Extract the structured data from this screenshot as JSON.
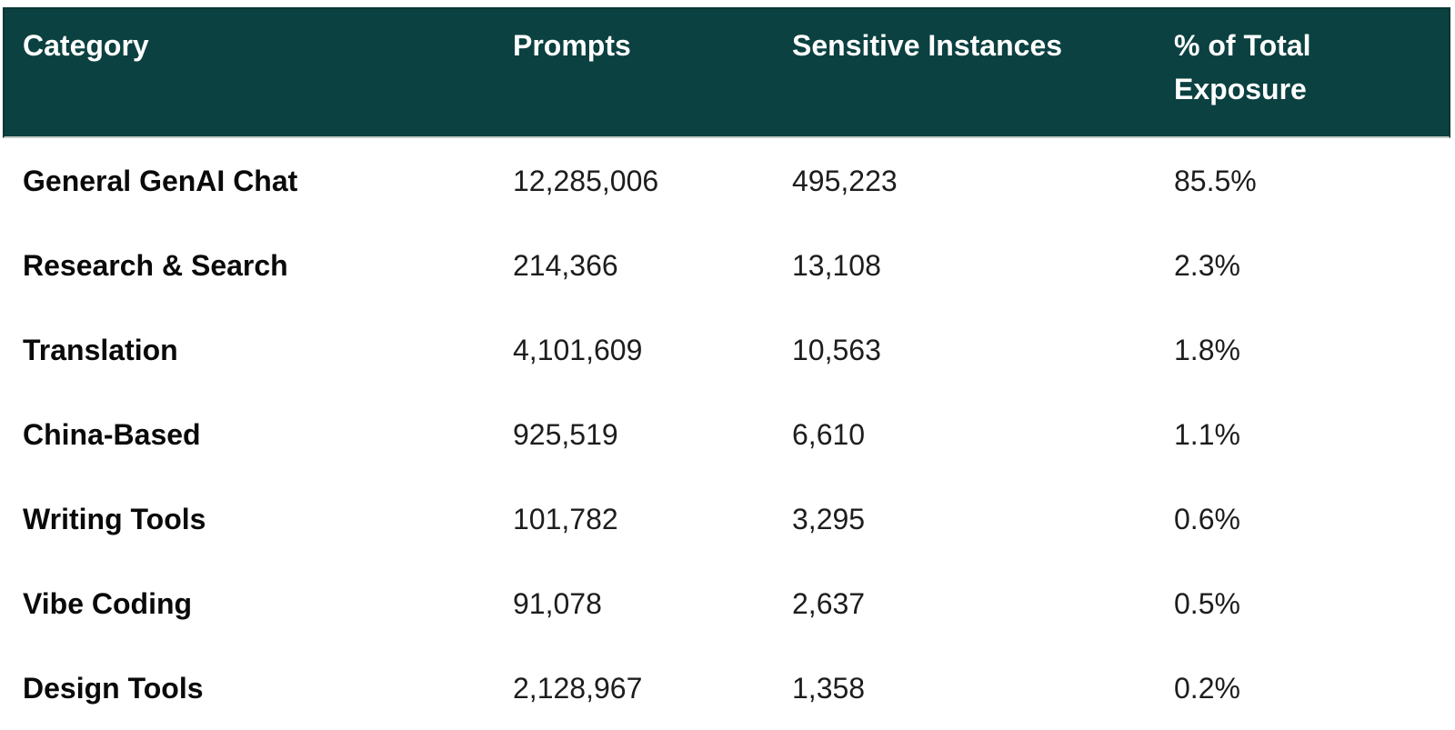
{
  "colors": {
    "header_background": "#0b4140",
    "header_border": "#093734",
    "header_divider": "#c7cccb",
    "header_text": "#ffffff",
    "body_background": "#ffffff",
    "body_text": "#1d1d1d"
  },
  "table": {
    "header": {
      "columns": [
        "Category",
        "Prompts",
        "Sensitive Instances",
        "% of Total Exposure"
      ]
    },
    "rows": [
      {
        "category": "General GenAI Chat",
        "prompts": "12,285,006",
        "sensitive_instances": "495,223",
        "pct_of_total_exposure": "85.5%"
      },
      {
        "category": "Research & Search",
        "prompts": "214,366",
        "sensitive_instances": "13,108",
        "pct_of_total_exposure": "2.3%"
      },
      {
        "category": "Translation",
        "prompts": "4,101,609",
        "sensitive_instances": "10,563",
        "pct_of_total_exposure": "1.8%"
      },
      {
        "category": "China-Based",
        "prompts": "925,519",
        "sensitive_instances": "6,610",
        "pct_of_total_exposure": "1.1%"
      },
      {
        "category": "Writing Tools",
        "prompts": "101,782",
        "sensitive_instances": "3,295",
        "pct_of_total_exposure": "0.6%"
      },
      {
        "category": "Vibe Coding",
        "prompts": "91,078",
        "sensitive_instances": "2,637",
        "pct_of_total_exposure": "0.5%"
      },
      {
        "category": "Design Tools",
        "prompts": "2,128,967",
        "sensitive_instances": "1,358",
        "pct_of_total_exposure": "0.2%"
      }
    ]
  },
  "chart_data": {
    "type": "table",
    "columns": [
      "Category",
      "Prompts",
      "Sensitive Instances",
      "% of Total Exposure"
    ],
    "rows": [
      [
        "General GenAI Chat",
        12285006,
        495223,
        "85.5%"
      ],
      [
        "Research & Search",
        214366,
        13108,
        "2.3%"
      ],
      [
        "Translation",
        4101609,
        10563,
        "1.8%"
      ],
      [
        "China-Based",
        925519,
        6610,
        "1.1%"
      ],
      [
        "Writing Tools",
        101782,
        3295,
        "0.6%"
      ],
      [
        "Vibe Coding",
        91078,
        2637,
        "0.5%"
      ],
      [
        "Design Tools",
        2128967,
        1358,
        "0.2%"
      ]
    ],
    "title": "",
    "layout": {
      "header_style": "dark-teal-band",
      "gridlines": false
    }
  }
}
